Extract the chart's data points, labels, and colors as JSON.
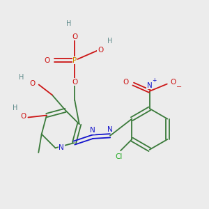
{
  "bg_color": "#ececec",
  "bond_color": "#3a7a3a",
  "atom_colors": {
    "C": "#3a7a3a",
    "N": "#1414cc",
    "O": "#cc1414",
    "P": "#cc8800",
    "Cl": "#22aa22",
    "H": "#5a8888"
  },
  "figsize": [
    3.0,
    3.0
  ],
  "dpi": 100,
  "xlim": [
    0,
    10
  ],
  "ylim": [
    0,
    10
  ]
}
